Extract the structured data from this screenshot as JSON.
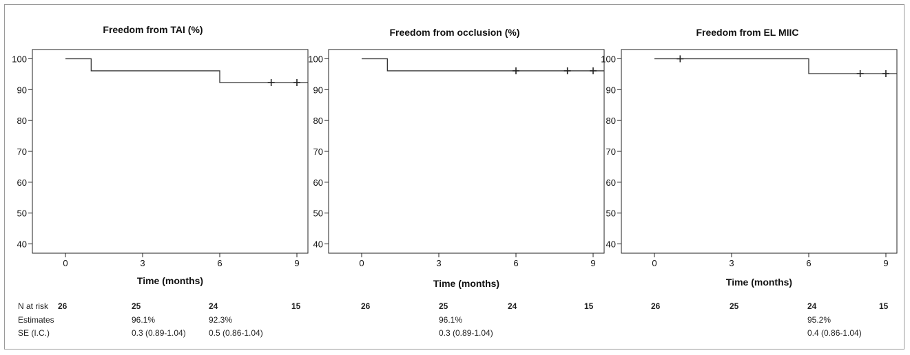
{
  "chart_data": [
    {
      "type": "line",
      "title": "Freedom from TAI (%)",
      "xlabel": "Time (months)",
      "ylabel": "",
      "xlim": [
        0,
        9.5
      ],
      "ylim": [
        37,
        103
      ],
      "xticks": [
        0,
        3,
        6,
        9
      ],
      "yticks": [
        100,
        90,
        80,
        70,
        60,
        50,
        40
      ],
      "step": [
        [
          0,
          100
        ],
        [
          1,
          96.1
        ],
        [
          6,
          92.3
        ],
        [
          9.5,
          92.3
        ]
      ],
      "censored": [
        [
          8,
          92.3
        ],
        [
          9,
          92.3
        ]
      ]
    },
    {
      "type": "line",
      "title": "Freedom from occlusion (%)",
      "xlabel": "Time (months)",
      "ylabel": "",
      "xlim": [
        0,
        9.5
      ],
      "ylim": [
        37,
        103
      ],
      "xticks": [
        0,
        3,
        6,
        9
      ],
      "yticks": [
        100,
        90,
        80,
        70,
        60,
        50,
        40
      ],
      "step": [
        [
          0,
          100
        ],
        [
          1,
          96.1
        ],
        [
          9.5,
          96.1
        ]
      ],
      "censored": [
        [
          6,
          96.1
        ],
        [
          8,
          96.1
        ],
        [
          9,
          96.1
        ]
      ]
    },
    {
      "type": "line",
      "title": "Freedom from EL MIIC",
      "xlabel": "Time (months)",
      "ylabel": "",
      "xlim": [
        0,
        9.5
      ],
      "ylim": [
        37,
        103
      ],
      "xticks": [
        0,
        3,
        6,
        9
      ],
      "yticks": [
        100,
        90,
        80,
        70,
        60,
        50,
        40
      ],
      "step": [
        [
          0,
          100
        ],
        [
          6,
          95.2
        ],
        [
          9.5,
          95.2
        ]
      ],
      "censored": [
        [
          1,
          100
        ],
        [
          8,
          95.2
        ],
        [
          9,
          95.2
        ]
      ]
    }
  ],
  "risk_table": {
    "labels": {
      "at_risk": "N at risk",
      "estimates": "Estimates",
      "se": "SE (I.C.)"
    },
    "panels": [
      {
        "at_risk": [
          "26",
          "25",
          "24",
          "15"
        ],
        "estimates": [
          "96.1%",
          "92.3%"
        ],
        "se": [
          "0.3 (0.89-1.04)",
          "0.5 (0.86-1.04)"
        ]
      },
      {
        "at_risk": [
          "26",
          "25",
          "24",
          "15"
        ],
        "estimates": [
          "96.1%"
        ],
        "se": [
          "0.3 (0.89-1.04)"
        ]
      },
      {
        "at_risk": [
          "26",
          "25",
          "24",
          "15"
        ],
        "estimates": [
          "95.2%"
        ],
        "se": [
          "0.4 (0.86-1.04)"
        ]
      }
    ]
  }
}
